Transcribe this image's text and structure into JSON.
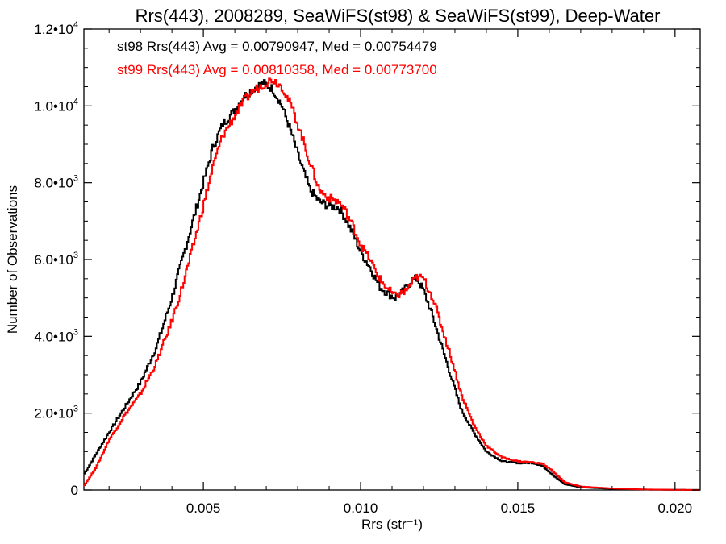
{
  "chart_data": {
    "type": "line",
    "title": "Rrs(443), 2008289, SeaWiFS(st98) & SeaWiFS(st99), Deep-Water",
    "xlabel": "Rrs (str⁻¹)",
    "ylabel": "Number of Observations",
    "xlim": [
      0.0012,
      0.0208
    ],
    "ylim": [
      0,
      12000
    ],
    "x_ticks": [
      0.005,
      0.01,
      0.015,
      0.02
    ],
    "x_tick_labels": [
      "0.005",
      "0.010",
      "0.015",
      "0.020"
    ],
    "y_ticks": [
      0,
      2000,
      4000,
      6000,
      8000,
      10000,
      12000
    ],
    "y_tick_labels": [
      {
        "mantissa": "0",
        "exp": ""
      },
      {
        "mantissa": "2.0•10",
        "exp": "3"
      },
      {
        "mantissa": "4.0•10",
        "exp": "3"
      },
      {
        "mantissa": "6.0•10",
        "exp": "3"
      },
      {
        "mantissa": "8.0•10",
        "exp": "3"
      },
      {
        "mantissa": "1.0•10",
        "exp": "4"
      },
      {
        "mantissa": "1.2•10",
        "exp": "4"
      }
    ],
    "grid": false,
    "legend_position": "top-left",
    "series": [
      {
        "name": "st98",
        "label": "st98 Rrs(443) Avg = 0.00790947, Med = 0.00754479",
        "color": "#000000",
        "x": [
          0.0012,
          0.0016,
          0.002,
          0.0025,
          0.003,
          0.0035,
          0.004,
          0.0043,
          0.0046,
          0.005,
          0.0053,
          0.0056,
          0.006,
          0.0063,
          0.0066,
          0.0069,
          0.0072,
          0.0075,
          0.0078,
          0.0081,
          0.0084,
          0.0087,
          0.009,
          0.0093,
          0.0095,
          0.0098,
          0.01,
          0.0103,
          0.0106,
          0.0109,
          0.0111,
          0.0114,
          0.0116,
          0.0118,
          0.012,
          0.0123,
          0.0126,
          0.0129,
          0.0132,
          0.0136,
          0.014,
          0.0145,
          0.015,
          0.0155,
          0.0158,
          0.0161,
          0.0165,
          0.017,
          0.018,
          0.019,
          0.02,
          0.0208
        ],
        "y": [
          400,
          950,
          1500,
          2150,
          2800,
          3700,
          5000,
          5900,
          6800,
          8000,
          8900,
          9500,
          9900,
          10250,
          10450,
          10600,
          10450,
          10000,
          9300,
          8500,
          7800,
          7500,
          7400,
          7350,
          7100,
          6600,
          6200,
          5800,
          5300,
          5100,
          5000,
          5200,
          5450,
          5500,
          5200,
          4500,
          3700,
          2900,
          2100,
          1500,
          1000,
          750,
          700,
          700,
          620,
          400,
          150,
          70,
          30,
          10,
          5,
          2
        ]
      },
      {
        "name": "st99",
        "label": "st99 Rrs(443) Avg = 0.00810358, Med = 0.00773700",
        "color": "#ff0000",
        "x": [
          0.0012,
          0.0016,
          0.002,
          0.0025,
          0.003,
          0.0035,
          0.004,
          0.0043,
          0.0046,
          0.005,
          0.0053,
          0.0056,
          0.006,
          0.0063,
          0.0066,
          0.0069,
          0.0072,
          0.0075,
          0.0078,
          0.0081,
          0.0084,
          0.0087,
          0.009,
          0.0093,
          0.0095,
          0.0098,
          0.01,
          0.0103,
          0.0106,
          0.0109,
          0.0111,
          0.0114,
          0.0116,
          0.0118,
          0.012,
          0.0123,
          0.0126,
          0.0129,
          0.0132,
          0.0136,
          0.014,
          0.0145,
          0.015,
          0.0155,
          0.0158,
          0.0161,
          0.0165,
          0.017,
          0.018,
          0.019,
          0.02,
          0.0208
        ],
        "y": [
          100,
          600,
          1300,
          1950,
          2500,
          3300,
          4400,
          5200,
          6100,
          7400,
          8400,
          9200,
          9750,
          10150,
          10400,
          10550,
          10700,
          10500,
          10000,
          9300,
          8500,
          7800,
          7600,
          7500,
          7300,
          6800,
          6400,
          6000,
          5500,
          5200,
          5050,
          5150,
          5350,
          5550,
          5500,
          5000,
          4200,
          3400,
          2500,
          1700,
          1150,
          850,
          750,
          720,
          680,
          500,
          200,
          90,
          40,
          15,
          5,
          2
        ]
      }
    ]
  }
}
